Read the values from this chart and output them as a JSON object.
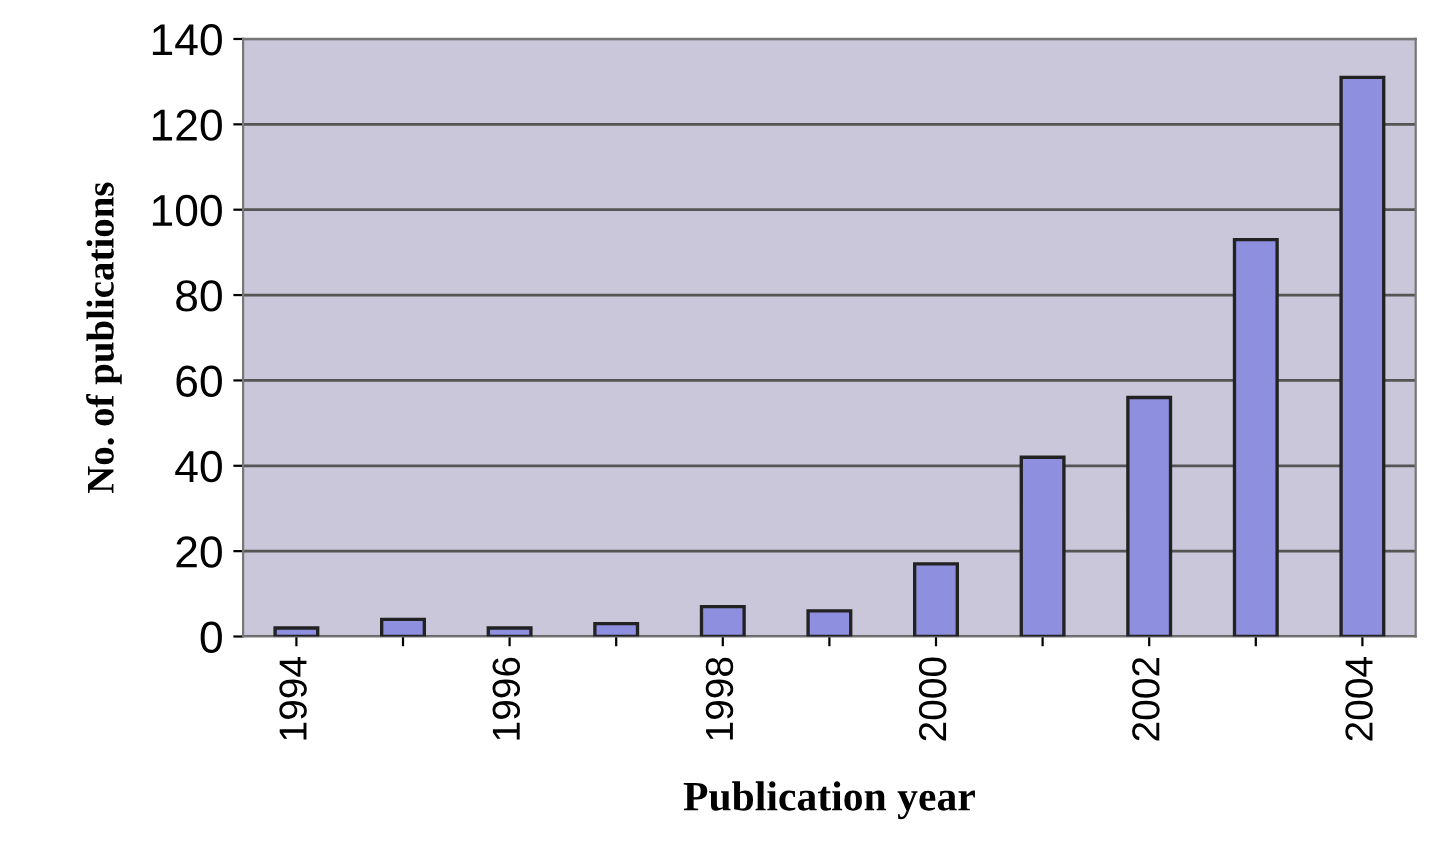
{
  "chart_data": {
    "type": "bar",
    "xlabel": "Publication year",
    "ylabel": "No. of publications",
    "categories": [
      "1994",
      null,
      "1996",
      null,
      "1998",
      null,
      "2000",
      null,
      "2002",
      null,
      "2004"
    ],
    "values": [
      2,
      4,
      2,
      3,
      7,
      6,
      17,
      42,
      56,
      93,
      131
    ],
    "color": "#8f8fe0",
    "ylim": [
      0,
      140
    ],
    "yticks": [
      0,
      20,
      40,
      60,
      80,
      100,
      120,
      140
    ],
    "grid": "y"
  }
}
